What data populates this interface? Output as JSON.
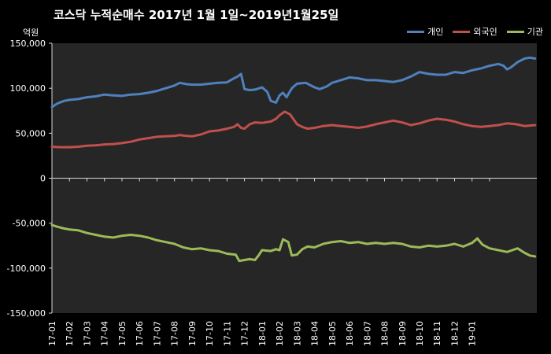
{
  "chart_data": {
    "type": "line",
    "title": "코스닥  누적순매수 2017년 1월 1일~2019년1월25일",
    "unit_label": "억원",
    "x": [
      "17-01",
      "17-02",
      "17-03",
      "17-04",
      "17-05",
      "17-06",
      "17-07",
      "17-08",
      "17-09",
      "17-10",
      "17-11",
      "17-12",
      "18-01",
      "18-02",
      "18-03",
      "18-04",
      "18-05",
      "18-06",
      "18-07",
      "18-08",
      "18-09",
      "18-10",
      "18-11",
      "18-12",
      "19-01"
    ],
    "ylim": [
      -150000,
      150000
    ],
    "yticks": [
      -150000,
      -100000,
      -50000,
      0,
      50000,
      100000,
      150000
    ],
    "ytick_labels": [
      "-150,000",
      "-100,000",
      "-50,000",
      "0",
      "50,000",
      "100,000",
      "150,000"
    ],
    "grid": false,
    "legend_position": "top-right",
    "series": [
      {
        "name": "개인",
        "color": "#4f81bd",
        "values": [
          [
            0,
            79000
          ],
          [
            0.3,
            83000
          ],
          [
            0.7,
            86000
          ],
          [
            1.0,
            87000
          ],
          [
            1.5,
            88000
          ],
          [
            2.0,
            90000
          ],
          [
            2.5,
            91000
          ],
          [
            3.0,
            93000
          ],
          [
            3.5,
            92000
          ],
          [
            4.0,
            91500
          ],
          [
            4.5,
            93000
          ],
          [
            5.0,
            93500
          ],
          [
            5.5,
            95000
          ],
          [
            6.0,
            97000
          ],
          [
            6.5,
            100000
          ],
          [
            7.0,
            103000
          ],
          [
            7.3,
            106000
          ],
          [
            7.7,
            104500
          ],
          [
            8.0,
            104000
          ],
          [
            8.5,
            104000
          ],
          [
            9.0,
            105000
          ],
          [
            9.5,
            106000
          ],
          [
            10.0,
            106500
          ],
          [
            10.3,
            110000
          ],
          [
            10.6,
            113000
          ],
          [
            10.8,
            116000
          ],
          [
            11.0,
            99000
          ],
          [
            11.3,
            98000
          ],
          [
            11.6,
            98500
          ],
          [
            12.0,
            101000
          ],
          [
            12.3,
            96000
          ],
          [
            12.5,
            86000
          ],
          [
            12.8,
            84000
          ],
          [
            13.0,
            92000
          ],
          [
            13.2,
            95000
          ],
          [
            13.4,
            90000
          ],
          [
            13.7,
            100000
          ],
          [
            14.0,
            105000
          ],
          [
            14.5,
            106000
          ],
          [
            15.0,
            101000
          ],
          [
            15.3,
            99000
          ],
          [
            15.7,
            102000
          ],
          [
            16.0,
            106000
          ],
          [
            16.5,
            109000
          ],
          [
            17.0,
            112000
          ],
          [
            17.5,
            111000
          ],
          [
            18.0,
            109000
          ],
          [
            18.5,
            109000
          ],
          [
            19.0,
            108000
          ],
          [
            19.5,
            107000
          ],
          [
            20.0,
            109000
          ],
          [
            20.5,
            113000
          ],
          [
            21.0,
            118000
          ],
          [
            21.5,
            116000
          ],
          [
            22.0,
            115000
          ],
          [
            22.5,
            115000
          ],
          [
            23.0,
            118000
          ],
          [
            23.5,
            117000
          ],
          [
            24.0,
            120000
          ],
          [
            24.5,
            122000
          ],
          [
            25.0,
            125000
          ],
          [
            25.5,
            127000
          ],
          [
            25.8,
            125000
          ],
          [
            26.0,
            121000
          ],
          [
            26.2,
            123000
          ],
          [
            26.6,
            129000
          ],
          [
            27.0,
            133000
          ],
          [
            27.3,
            134000
          ],
          [
            27.6,
            133000
          ]
        ]
      },
      {
        "name": "외국인",
        "color": "#c0504d",
        "values": [
          [
            0,
            35000
          ],
          [
            0.5,
            34500
          ],
          [
            1.0,
            34500
          ],
          [
            1.5,
            35000
          ],
          [
            2.0,
            36000
          ],
          [
            2.5,
            36500
          ],
          [
            3.0,
            37500
          ],
          [
            3.5,
            38000
          ],
          [
            4.0,
            39000
          ],
          [
            4.5,
            40500
          ],
          [
            5.0,
            43000
          ],
          [
            5.5,
            44500
          ],
          [
            6.0,
            46000
          ],
          [
            6.5,
            46500
          ],
          [
            7.0,
            47000
          ],
          [
            7.3,
            48000
          ],
          [
            7.7,
            47000
          ],
          [
            8.0,
            46500
          ],
          [
            8.5,
            48500
          ],
          [
            9.0,
            52000
          ],
          [
            9.5,
            53000
          ],
          [
            10.0,
            55000
          ],
          [
            10.4,
            57000
          ],
          [
            10.6,
            60000
          ],
          [
            10.8,
            56000
          ],
          [
            11.0,
            55000
          ],
          [
            11.3,
            60000
          ],
          [
            11.6,
            62000
          ],
          [
            12.0,
            61500
          ],
          [
            12.5,
            63000
          ],
          [
            12.8,
            66000
          ],
          [
            13.0,
            70000
          ],
          [
            13.3,
            74000
          ],
          [
            13.6,
            71000
          ],
          [
            14.0,
            60000
          ],
          [
            14.3,
            57000
          ],
          [
            14.6,
            55000
          ],
          [
            15.0,
            56000
          ],
          [
            15.5,
            58000
          ],
          [
            16.0,
            59000
          ],
          [
            16.5,
            58000
          ],
          [
            17.0,
            57000
          ],
          [
            17.5,
            56000
          ],
          [
            18.0,
            57500
          ],
          [
            18.5,
            60000
          ],
          [
            19.0,
            62000
          ],
          [
            19.5,
            64000
          ],
          [
            20.0,
            62000
          ],
          [
            20.5,
            59000
          ],
          [
            21.0,
            61000
          ],
          [
            21.5,
            64000
          ],
          [
            22.0,
            66000
          ],
          [
            22.5,
            65000
          ],
          [
            23.0,
            63000
          ],
          [
            23.5,
            60000
          ],
          [
            24.0,
            58000
          ],
          [
            24.5,
            57000
          ],
          [
            25.0,
            58000
          ],
          [
            25.5,
            59000
          ],
          [
            26.0,
            61000
          ],
          [
            26.5,
            60000
          ],
          [
            27.0,
            58000
          ],
          [
            27.6,
            59000
          ]
        ]
      },
      {
        "name": "기관",
        "color": "#9bbb59",
        "values": [
          [
            0,
            -52000
          ],
          [
            0.3,
            -54000
          ],
          [
            0.7,
            -56000
          ],
          [
            1.0,
            -57000
          ],
          [
            1.5,
            -58000
          ],
          [
            2.0,
            -61000
          ],
          [
            2.5,
            -63000
          ],
          [
            3.0,
            -65000
          ],
          [
            3.5,
            -66000
          ],
          [
            4.0,
            -64000
          ],
          [
            4.5,
            -63000
          ],
          [
            5.0,
            -64000
          ],
          [
            5.5,
            -66000
          ],
          [
            6.0,
            -69000
          ],
          [
            6.5,
            -71000
          ],
          [
            7.0,
            -73000
          ],
          [
            7.5,
            -77000
          ],
          [
            8.0,
            -79000
          ],
          [
            8.5,
            -78000
          ],
          [
            9.0,
            -80000
          ],
          [
            9.5,
            -81000
          ],
          [
            10.0,
            -84000
          ],
          [
            10.5,
            -85000
          ],
          [
            10.7,
            -92000
          ],
          [
            11.0,
            -91000
          ],
          [
            11.3,
            -90000
          ],
          [
            11.6,
            -91000
          ],
          [
            11.8,
            -86000
          ],
          [
            12.0,
            -80000
          ],
          [
            12.5,
            -81000
          ],
          [
            12.8,
            -79000
          ],
          [
            13.0,
            -80000
          ],
          [
            13.2,
            -68000
          ],
          [
            13.5,
            -71000
          ],
          [
            13.7,
            -86000
          ],
          [
            14.0,
            -85000
          ],
          [
            14.3,
            -79000
          ],
          [
            14.6,
            -76000
          ],
          [
            15.0,
            -77000
          ],
          [
            15.5,
            -73000
          ],
          [
            16.0,
            -71000
          ],
          [
            16.5,
            -70000
          ],
          [
            17.0,
            -72000
          ],
          [
            17.5,
            -71000
          ],
          [
            18.0,
            -73000
          ],
          [
            18.5,
            -72000
          ],
          [
            19.0,
            -73000
          ],
          [
            19.5,
            -72000
          ],
          [
            20.0,
            -73000
          ],
          [
            20.5,
            -76000
          ],
          [
            21.0,
            -77000
          ],
          [
            21.5,
            -75000
          ],
          [
            22.0,
            -76000
          ],
          [
            22.5,
            -75000
          ],
          [
            23.0,
            -73000
          ],
          [
            23.5,
            -76000
          ],
          [
            24.0,
            -72000
          ],
          [
            24.3,
            -67000
          ],
          [
            24.6,
            -74000
          ],
          [
            25.0,
            -78000
          ],
          [
            25.5,
            -80000
          ],
          [
            26.0,
            -82000
          ],
          [
            26.3,
            -80000
          ],
          [
            26.6,
            -78000
          ],
          [
            27.0,
            -83000
          ],
          [
            27.3,
            -86000
          ],
          [
            27.6,
            -87000
          ]
        ]
      }
    ]
  }
}
